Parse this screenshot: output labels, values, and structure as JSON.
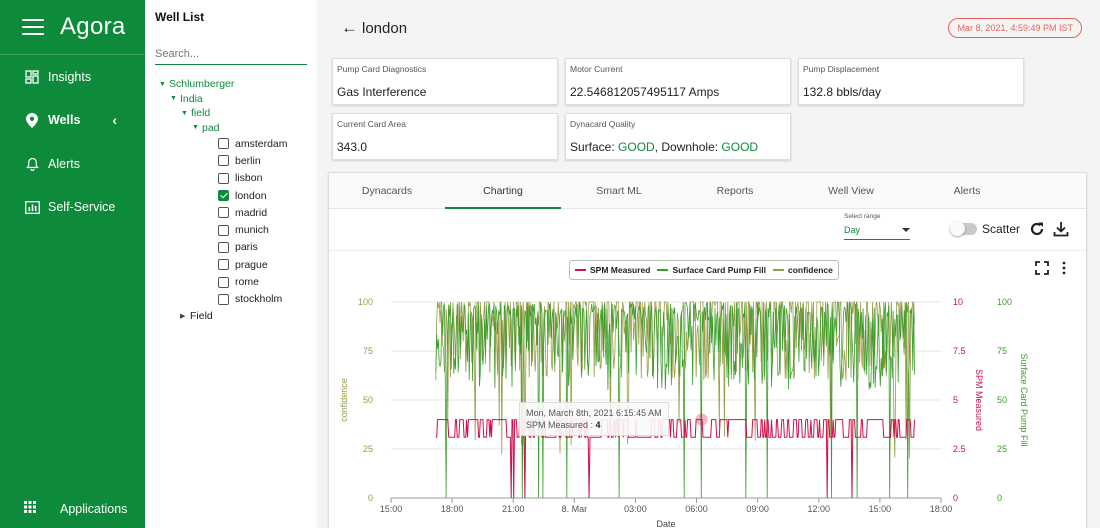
{
  "app": {
    "brand": "Agora"
  },
  "sidebar": {
    "items": [
      {
        "label": "Insights",
        "icon": "dashboard-icon"
      },
      {
        "label": "Wells",
        "icon": "location-pin-icon"
      },
      {
        "label": "Alerts",
        "icon": "bell-icon"
      },
      {
        "label": "Self-Service",
        "icon": "chart-icon"
      }
    ],
    "apps_label": "Applications"
  },
  "welllist": {
    "title": "Well List",
    "search_placeholder": "Search...",
    "tree": {
      "root": "Schlumberger",
      "country": "India",
      "field": "field",
      "pad": "pad",
      "wells": [
        {
          "name": "amsterdam",
          "checked": false
        },
        {
          "name": "berlin",
          "checked": false
        },
        {
          "name": "lisbon",
          "checked": false
        },
        {
          "name": "london",
          "checked": true
        },
        {
          "name": "madrid",
          "checked": false
        },
        {
          "name": "munich",
          "checked": false
        },
        {
          "name": "paris",
          "checked": false
        },
        {
          "name": "prague",
          "checked": false
        },
        {
          "name": "rome",
          "checked": false
        },
        {
          "name": "stockholm",
          "checked": false
        }
      ],
      "collapsed": "Field"
    }
  },
  "header": {
    "title": "london",
    "timestamp": "Mar 8, 2021, 4:59:49 PM IST"
  },
  "cards": {
    "pump_card_diag": {
      "title": "Pump Card Diagnostics",
      "value": "Gas Interference"
    },
    "motor_current": {
      "title": "Motor Current",
      "value": "22.546812057495117 Amps"
    },
    "pump_displacement": {
      "title": "Pump Displacement",
      "value": "132.8 bbls/day"
    },
    "current_card_area": {
      "title": "Current Card Area",
      "value": "343.0"
    },
    "dynacard_quality": {
      "title": "Dynacard Quality",
      "surface_label": "Surface: ",
      "surface_value": "GOOD",
      "separator": ", Downhole: ",
      "downhole_value": "GOOD"
    }
  },
  "tabs": [
    "Dynacards",
    "Charting",
    "Smart ML",
    "Reports",
    "Well View",
    "Alerts"
  ],
  "toolbar": {
    "range_label": "Select range",
    "range_value": "Day",
    "scatter_label": "Scatter"
  },
  "tooltip": {
    "date": "Mon, March 8th, 2021 6:15:45 AM",
    "series": "SPM Measured",
    "value": "4"
  },
  "colors": {
    "brand": "#0d8a3a",
    "spm": "#d0104c",
    "fill": "#3a9e2a",
    "confidence": "#9a9a45",
    "badge": "#e8645a"
  },
  "chart_data": {
    "type": "line",
    "xlabel": "Date",
    "x_ticks": [
      "15:00",
      "18:00",
      "21:00",
      "8. Mar",
      "03:00",
      "06:00",
      "09:00",
      "12:00",
      "15:00",
      "18:00"
    ],
    "x_start": "2021-03-07 15:00",
    "x_end": "2021-03-08 18:00",
    "data_start": "2021-03-07 17:00",
    "data_end": "2021-03-08 16:50",
    "y_axes": [
      {
        "label": "confidence",
        "ticks": [
          "0",
          "25",
          "50",
          "75",
          "100"
        ],
        "ylim": [
          0,
          100
        ],
        "side": "left"
      },
      {
        "label": "SPM Measured",
        "ticks": [
          "0",
          "2.5",
          "5",
          "7.5",
          "10"
        ],
        "ylim": [
          0,
          10
        ],
        "side": "right"
      },
      {
        "label": "Surface Card Pump Fill",
        "ticks": [
          "0",
          "25",
          "50",
          "75",
          "100"
        ],
        "ylim": [
          0,
          100
        ],
        "side": "right"
      }
    ],
    "series": [
      {
        "name": "SPM Measured",
        "axis": 1,
        "typical": 3.1,
        "high": 4,
        "min": 0
      },
      {
        "name": "Surface Card Pump Fill",
        "axis": 2,
        "typical_range": [
          55,
          100
        ],
        "min": 0
      },
      {
        "name": "confidence",
        "axis": 0,
        "typical_range": [
          60,
          100
        ],
        "min": 0
      }
    ],
    "legend": [
      "SPM Measured",
      "Surface Card Pump Fill",
      "confidence"
    ],
    "legend_position": "top-center",
    "grid": "horizontal"
  }
}
